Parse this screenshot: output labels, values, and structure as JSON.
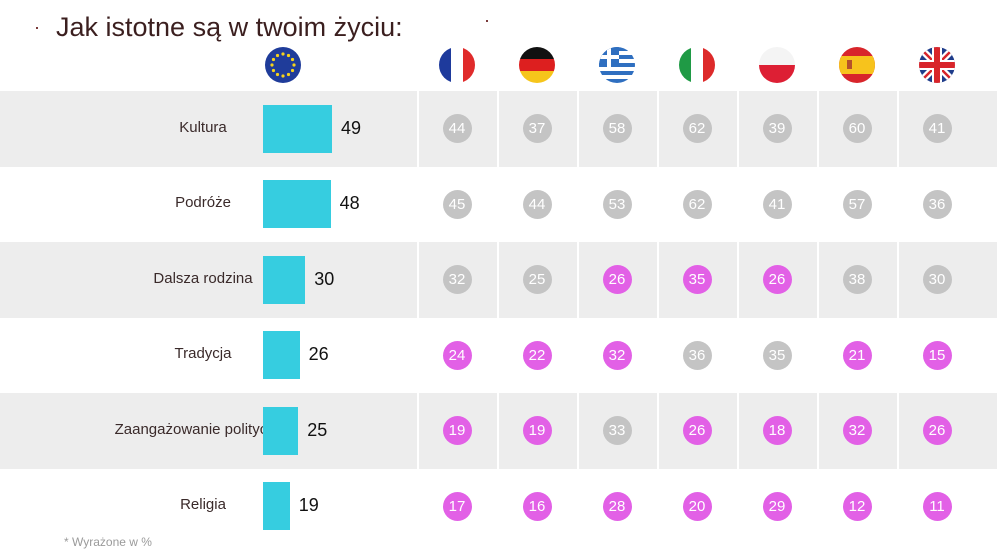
{
  "title": "Jak istotne są w twoim życiu:",
  "footnote": "* Wyrażone w %",
  "colors": {
    "bar": "#36cde0",
    "highlight": "#e260e6",
    "neutral": "#c4c4c4",
    "shade": "#ededed"
  },
  "columns": [
    {
      "name": "EU",
      "icon": "eu-flag-icon"
    },
    {
      "name": "France",
      "icon": "france-flag-icon"
    },
    {
      "name": "Germany",
      "icon": "germany-flag-icon"
    },
    {
      "name": "Greece",
      "icon": "greece-flag-icon"
    },
    {
      "name": "Italy",
      "icon": "italy-flag-icon"
    },
    {
      "name": "Poland",
      "icon": "poland-flag-icon"
    },
    {
      "name": "Spain",
      "icon": "spain-flag-icon"
    },
    {
      "name": "UK",
      "icon": "uk-flag-icon"
    }
  ],
  "chart_data": {
    "type": "table",
    "categories": [
      "Kultura",
      "Podróże",
      "Dalsza rodzina",
      "Tradycja",
      "Zaangażowanie polityczne",
      "Religia"
    ],
    "eu_values": [
      49,
      48,
      30,
      26,
      25,
      19
    ],
    "country_values": [
      [
        44,
        37,
        58,
        62,
        39,
        60,
        41
      ],
      [
        45,
        44,
        53,
        62,
        41,
        57,
        36
      ],
      [
        32,
        25,
        26,
        35,
        26,
        38,
        30
      ],
      [
        24,
        22,
        32,
        36,
        35,
        21,
        15
      ],
      [
        19,
        19,
        33,
        26,
        18,
        32,
        26
      ],
      [
        17,
        16,
        28,
        20,
        29,
        12,
        11
      ]
    ],
    "highlighted": [
      [
        false,
        false,
        false,
        false,
        false,
        false,
        false
      ],
      [
        false,
        false,
        false,
        false,
        false,
        false,
        false
      ],
      [
        false,
        false,
        true,
        true,
        true,
        false,
        false
      ],
      [
        true,
        true,
        true,
        false,
        false,
        true,
        true
      ],
      [
        true,
        true,
        false,
        true,
        true,
        true,
        true
      ],
      [
        true,
        true,
        true,
        true,
        true,
        true,
        true
      ]
    ]
  }
}
